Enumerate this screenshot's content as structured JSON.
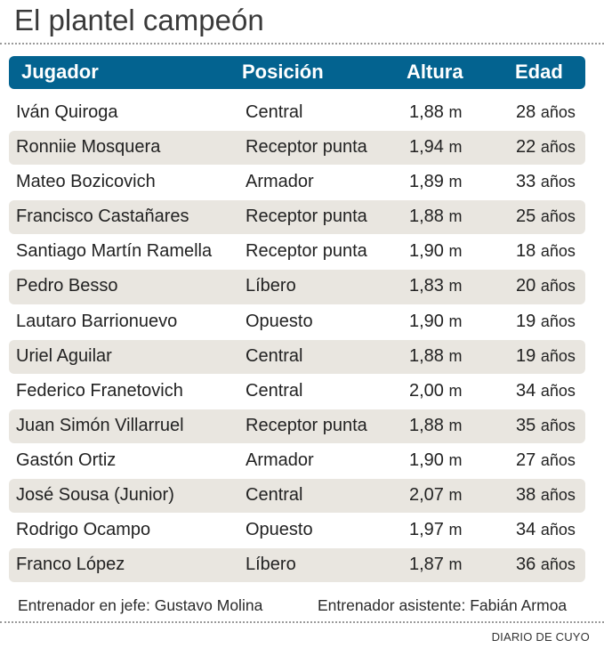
{
  "title": "El plantel campeón",
  "table": {
    "headers": {
      "jugador": "Jugador",
      "posicion": "Posición",
      "altura": "Altura",
      "edad": "Edad"
    },
    "rows": [
      {
        "jugador": "Iván Quiroga",
        "posicion": "Central",
        "altura_num": "1,88",
        "altura_unit": "m",
        "edad_num": "28",
        "edad_unit": "años"
      },
      {
        "jugador": "Ronniie Mosquera",
        "posicion": "Receptor punta",
        "altura_num": "1,94",
        "altura_unit": "m",
        "edad_num": "22",
        "edad_unit": "años"
      },
      {
        "jugador": "Mateo Bozicovich",
        "posicion": "Armador",
        "altura_num": "1,89",
        "altura_unit": "m",
        "edad_num": "33",
        "edad_unit": "años"
      },
      {
        "jugador": "Francisco Castañares",
        "posicion": "Receptor punta",
        "altura_num": "1,88",
        "altura_unit": "m",
        "edad_num": "25",
        "edad_unit": "años"
      },
      {
        "jugador": "Santiago Martín Ramella",
        "posicion": "Receptor punta",
        "altura_num": "1,90",
        "altura_unit": "m",
        "edad_num": "18",
        "edad_unit": "años"
      },
      {
        "jugador": "Pedro Besso",
        "posicion": "Líbero",
        "altura_num": "1,83",
        "altura_unit": "m",
        "edad_num": "20",
        "edad_unit": "años"
      },
      {
        "jugador": "Lautaro Barrionuevo",
        "posicion": "Opuesto",
        "altura_num": "1,90",
        "altura_unit": "m",
        "edad_num": "19",
        "edad_unit": "años"
      },
      {
        "jugador": "Uriel Aguilar",
        "posicion": "Central",
        "altura_num": "1,88",
        "altura_unit": "m",
        "edad_num": "19",
        "edad_unit": "años"
      },
      {
        "jugador": "Federico Franetovich",
        "posicion": "Central",
        "altura_num": "2,00",
        "altura_unit": "m",
        "edad_num": "34",
        "edad_unit": "años"
      },
      {
        "jugador": "Juan Simón Villarruel",
        "posicion": "Receptor punta",
        "altura_num": "1,88",
        "altura_unit": "m",
        "edad_num": "35",
        "edad_unit": "años"
      },
      {
        "jugador": "Gastón Ortiz",
        "posicion": "Armador",
        "altura_num": "1,90",
        "altura_unit": "m",
        "edad_num": "27",
        "edad_unit": "años"
      },
      {
        "jugador": "José Sousa (Junior)",
        "posicion": "Central",
        "altura_num": "2,07",
        "altura_unit": "m",
        "edad_num": "38",
        "edad_unit": "años"
      },
      {
        "jugador": "Rodrigo Ocampo",
        "posicion": "Opuesto",
        "altura_num": "1,97",
        "altura_unit": "m",
        "edad_num": "34",
        "edad_unit": "años"
      },
      {
        "jugador": "Franco López",
        "posicion": "Líbero",
        "altura_num": "1,87",
        "altura_unit": "m",
        "edad_num": "36",
        "edad_unit": "años"
      }
    ]
  },
  "footer": {
    "head_coach": "Entrenador en jefe: Gustavo Molina",
    "assistant_coach": "Entrenador asistente: Fabián Armoa",
    "source": "DIARIO DE CUYO"
  },
  "colors": {
    "header_bg": "#036390",
    "stripe_bg": "#e9e6e0",
    "title_text": "#3a3a3a"
  }
}
